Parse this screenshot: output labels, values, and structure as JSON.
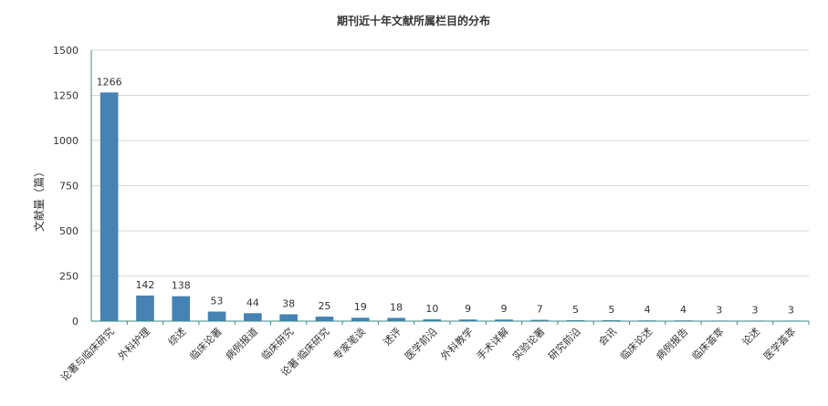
{
  "chart_data": {
    "type": "bar",
    "title": "期刊近十年文献所属栏目的分布",
    "ylabel": "文献量（篇）",
    "xlabel": "",
    "ylim": [
      0,
      1500
    ],
    "yticks": [
      0,
      250,
      500,
      750,
      1000,
      1250,
      1500
    ],
    "grid": true,
    "bar_color": "#4682b4",
    "categories": [
      "论著与临床研究",
      "外科护理",
      "综述",
      "临床论著",
      "病例报道",
      "临床研究",
      "论著·临床研究",
      "专家笔谈",
      "述评",
      "医学前沿",
      "外科教学",
      "手术详解",
      "实验论著",
      "研究前沿",
      "会讯",
      "临床论述",
      "病例报告",
      "临床荟萃",
      "论述",
      "医学荟萃"
    ],
    "values": [
      1266,
      142,
      138,
      53,
      44,
      38,
      25,
      19,
      18,
      10,
      9,
      9,
      7,
      5,
      5,
      4,
      4,
      3,
      3,
      3
    ]
  }
}
